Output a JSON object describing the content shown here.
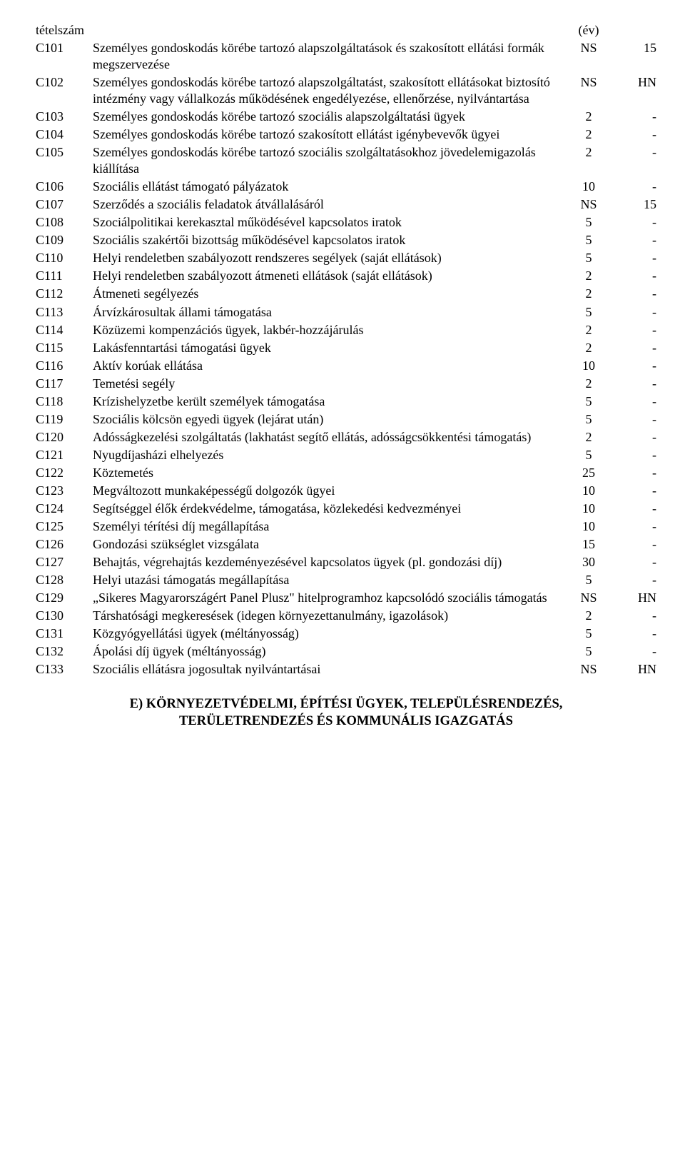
{
  "header": {
    "tetelszam": "tételszám",
    "ev": "(év)"
  },
  "rows": [
    {
      "code": "C101",
      "desc": "Személyes gondoskodás körébe tartozó alapszolgáltatások és szakosított ellátási formák megszervezése",
      "v1": "NS",
      "v2": "15"
    },
    {
      "code": "C102",
      "desc": "Személyes gondoskodás körébe tartozó alapszolgáltatást, szakosított ellátásokat biztosító intézmény vagy vállalkozás működésének engedélyezése, ellenőrzése, nyilvántartása",
      "v1": "NS",
      "v2": "HN"
    },
    {
      "code": "C103",
      "desc": "Személyes gondoskodás körébe tartozó szociális alapszolgáltatási ügyek",
      "v1": "2",
      "v2": "-"
    },
    {
      "code": "C104",
      "desc": "Személyes gondoskodás körébe tartozó szakosított ellátást igénybevevők ügyei",
      "v1": "2",
      "v2": "-"
    },
    {
      "code": "C105",
      "desc": "Személyes gondoskodás körébe tartozó szociális szolgáltatásokhoz jövedelemigazolás kiállítása",
      "v1": "2",
      "v2": "-"
    },
    {
      "code": "C106",
      "desc": "Szociális ellátást támogató pályázatok",
      "v1": "10",
      "v2": "-"
    },
    {
      "code": "C107",
      "desc": "Szerződés a szociális feladatok átvállalásáról",
      "v1": "NS",
      "v2": "15"
    },
    {
      "code": "C108",
      "desc": "Szociálpolitikai kerekasztal működésével kapcsolatos iratok",
      "v1": "5",
      "v2": "-"
    },
    {
      "code": "C109",
      "desc": "Szociális szakértői bizottság működésével kapcsolatos iratok",
      "v1": "5",
      "v2": "-"
    },
    {
      "code": "C110",
      "desc": "Helyi rendeletben szabályozott rendszeres segélyek (saját ellátások)",
      "v1": "5",
      "v2": "-"
    },
    {
      "code": "C111",
      "desc": "Helyi rendeletben szabályozott átmeneti ellátások (saját ellátások)",
      "v1": "2",
      "v2": "-"
    },
    {
      "code": "C112",
      "desc": "Átmeneti segélyezés",
      "v1": "2",
      "v2": "-"
    },
    {
      "code": "C113",
      "desc": "Árvízkárosultak állami támogatása",
      "v1": "5",
      "v2": "-"
    },
    {
      "code": "C114",
      "desc": "Közüzemi kompenzációs ügyek, lakbér-hozzájárulás",
      "v1": "2",
      "v2": "-"
    },
    {
      "code": "C115",
      "desc": "Lakásfenntartási támogatási ügyek",
      "v1": "2",
      "v2": "-"
    },
    {
      "code": "C116",
      "desc": "Aktív korúak ellátása",
      "v1": "10",
      "v2": "-"
    },
    {
      "code": "C117",
      "desc": "Temetési segély",
      "v1": "2",
      "v2": "-"
    },
    {
      "code": "C118",
      "desc": "Krízishelyzetbe került személyek támogatása",
      "v1": "5",
      "v2": "-"
    },
    {
      "code": "C119",
      "desc": "Szociális kölcsön egyedi ügyek (lejárat után)",
      "v1": "5",
      "v2": "-"
    },
    {
      "code": "C120",
      "desc": "Adósságkezelési szolgáltatás (lakhatást segítő ellátás, adósságcsökkentési támogatás)",
      "v1": "2",
      "v2": "-"
    },
    {
      "code": "C121",
      "desc": "Nyugdíjasházi elhelyezés",
      "v1": "5",
      "v2": "-"
    },
    {
      "code": "C122",
      "desc": "Köztemetés",
      "v1": "25",
      "v2": "-"
    },
    {
      "code": "C123",
      "desc": "Megváltozott munkaképességű dolgozók ügyei",
      "v1": "10",
      "v2": "-"
    },
    {
      "code": "C124",
      "desc": "Segítséggel élők érdekvédelme, támogatása, közlekedési kedvezményei",
      "v1": "10",
      "v2": "-"
    },
    {
      "code": "C125",
      "desc": "Személyi térítési díj megállapítása",
      "v1": "10",
      "v2": "-"
    },
    {
      "code": "C126",
      "desc": "Gondozási szükséglet vizsgálata",
      "v1": "15",
      "v2": "-"
    },
    {
      "code": "C127",
      "desc": "Behajtás, végrehajtás kezdeményezésével kapcsolatos ügyek (pl. gondozási díj)",
      "v1": "30",
      "v2": "-"
    },
    {
      "code": "C128",
      "desc": "Helyi utazási támogatás megállapítása",
      "v1": "5",
      "v2": "-"
    },
    {
      "code": "C129",
      "desc": "„Sikeres Magyarországért Panel Plusz\" hitelprogramhoz kapcsolódó szociális támogatás",
      "v1": "NS",
      "v2": "HN"
    },
    {
      "code": "C130",
      "desc": "Társhatósági megkeresések (idegen környezettanulmány, igazolások)",
      "v1": "2",
      "v2": "-"
    },
    {
      "code": "C131",
      "desc": "Közgyógyellátási ügyek (méltányosság)",
      "v1": "5",
      "v2": "-"
    },
    {
      "code": "C132",
      "desc": "Ápolási díj ügyek (méltányosság)",
      "v1": "5",
      "v2": "-"
    },
    {
      "code": "C133",
      "desc": "Szociális ellátásra jogosultak nyilvántartásai",
      "v1": "NS",
      "v2": "HN"
    }
  ],
  "section_title": {
    "line1": "E) KÖRNYEZETVÉDELMI, ÉPÍTÉSI ÜGYEK, TELEPÜLÉSRENDEZÉS,",
    "line2": "TERÜLETRENDEZÉS ÉS KOMMUNÁLIS IGAZGATÁS"
  }
}
